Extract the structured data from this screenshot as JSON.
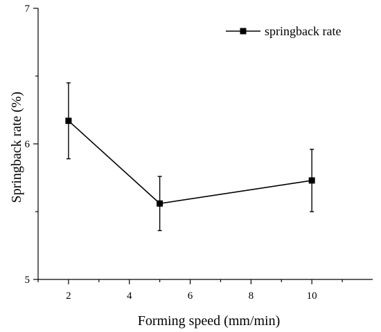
{
  "chart_data": {
    "type": "line",
    "xlabel": "Forming speed (mm/min)",
    "ylabel": "Springback rate (%)",
    "xlim": [
      1,
      12
    ],
    "ylim": [
      5,
      7
    ],
    "x_ticks": [
      2,
      4,
      6,
      8,
      10
    ],
    "y_ticks": [
      5,
      6,
      7
    ],
    "grid": false,
    "legend_position": "top-right",
    "series": [
      {
        "name": "springback rate",
        "marker": "square",
        "color": "#000000",
        "x": [
          2,
          5,
          10
        ],
        "y": [
          6.17,
          5.56,
          5.73
        ],
        "error": [
          0.28,
          0.2,
          0.23
        ]
      }
    ]
  }
}
